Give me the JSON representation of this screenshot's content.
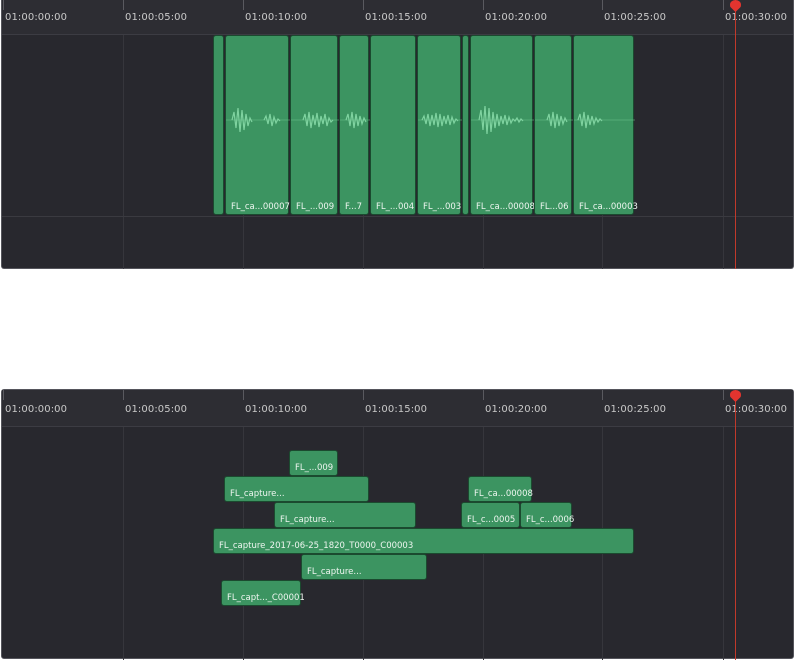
{
  "ruler": {
    "timecodes": [
      "01:00:00:00",
      "01:00:05:00",
      "01:00:10:00",
      "01:00:15:00",
      "01:00:20:00",
      "01:00:25:00",
      "01:00:30:00"
    ]
  },
  "top_view": {
    "clips": [
      {
        "label": ""
      },
      {
        "label": "FL_ca...00007"
      },
      {
        "label": "FL_...009"
      },
      {
        "label": "F...7"
      },
      {
        "label": "FL_...004"
      },
      {
        "label": "FL_...003"
      },
      {
        "label": ""
      },
      {
        "label": "FL_ca...00008"
      },
      {
        "label": "FL...06"
      },
      {
        "label": "FL_ca...00003"
      }
    ]
  },
  "bottom_view": {
    "clips": [
      {
        "label": "FL_...009"
      },
      {
        "label": "FL_capture..."
      },
      {
        "label": "FL_ca...00008"
      },
      {
        "label": "FL_capture..."
      },
      {
        "label": "FL_c...0005"
      },
      {
        "label": "FL_c...0006"
      },
      {
        "label": "FL_capture_2017-06-25_1820_T0000_C00003"
      },
      {
        "label": "FL_capture..."
      },
      {
        "label": "FL_capt..._C00001"
      }
    ]
  },
  "colors": {
    "panel_bg": "#28282e",
    "clip_green": "#3c9461",
    "playhead_red": "#e3342f"
  }
}
